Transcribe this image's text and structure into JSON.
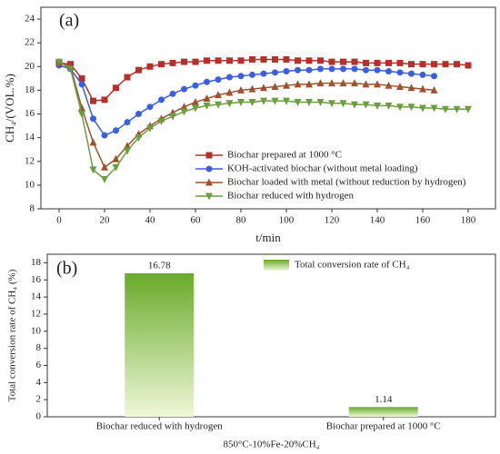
{
  "chart_data": [
    {
      "type": "line",
      "panel": "(a)",
      "xlabel": "t/min",
      "ylabel": "CH₄/(VOL.%)",
      "xlim": [
        -8,
        192
      ],
      "xticks": [
        0,
        20,
        40,
        60,
        80,
        100,
        120,
        140,
        160,
        180
      ],
      "ylim": [
        8,
        25
      ],
      "yticks": [
        8,
        10,
        12,
        14,
        16,
        18,
        20,
        22,
        24
      ],
      "series": [
        {
          "name": "Biochar prepared at 1000 °C",
          "color": "#b5302a",
          "marker": "square",
          "x": [
            0,
            5,
            10,
            15,
            20,
            25,
            30,
            35,
            40,
            45,
            50,
            55,
            60,
            65,
            70,
            75,
            80,
            85,
            90,
            95,
            100,
            105,
            110,
            115,
            120,
            125,
            130,
            135,
            140,
            145,
            150,
            155,
            160,
            165,
            170,
            175,
            180
          ],
          "values": [
            20.3,
            20.2,
            19.0,
            17.1,
            17.2,
            18.2,
            19.1,
            19.7,
            20.0,
            20.2,
            20.3,
            20.4,
            20.4,
            20.5,
            20.5,
            20.5,
            20.5,
            20.6,
            20.6,
            20.6,
            20.6,
            20.5,
            20.5,
            20.5,
            20.4,
            20.4,
            20.4,
            20.3,
            20.3,
            20.3,
            20.3,
            20.2,
            20.2,
            20.2,
            20.2,
            20.2,
            20.1
          ]
        },
        {
          "name": "KOH-activated biochar (without metal loading)",
          "color": "#3a5fe0",
          "marker": "circle",
          "x": [
            0,
            5,
            10,
            15,
            20,
            25,
            30,
            35,
            40,
            45,
            50,
            55,
            60,
            65,
            70,
            75,
            80,
            85,
            90,
            95,
            100,
            105,
            110,
            115,
            120,
            125,
            130,
            135,
            140,
            145,
            150,
            155,
            160,
            165
          ],
          "values": [
            20.1,
            19.8,
            18.5,
            15.6,
            14.2,
            14.6,
            15.3,
            16.0,
            16.6,
            17.2,
            17.7,
            18.1,
            18.4,
            18.7,
            18.9,
            19.1,
            19.2,
            19.3,
            19.4,
            19.5,
            19.6,
            19.7,
            19.7,
            19.8,
            19.8,
            19.8,
            19.8,
            19.7,
            19.7,
            19.6,
            19.5,
            19.4,
            19.3,
            19.2
          ]
        },
        {
          "name": "Biochar loaded with metal (without reduction by hydrogen)",
          "color": "#a0522d",
          "marker": "triangle",
          "x": [
            0,
            5,
            10,
            15,
            20,
            25,
            30,
            35,
            40,
            45,
            50,
            55,
            60,
            65,
            70,
            75,
            80,
            85,
            90,
            95,
            100,
            105,
            110,
            115,
            120,
            125,
            130,
            135,
            140,
            145,
            150,
            155,
            160,
            165
          ],
          "values": [
            20.3,
            20.0,
            16.5,
            13.6,
            11.5,
            12.2,
            13.3,
            14.3,
            15.0,
            15.6,
            16.1,
            16.6,
            17.0,
            17.3,
            17.6,
            17.8,
            18.0,
            18.1,
            18.2,
            18.3,
            18.4,
            18.5,
            18.5,
            18.6,
            18.6,
            18.6,
            18.6,
            18.5,
            18.5,
            18.4,
            18.3,
            18.2,
            18.1,
            18.0
          ]
        },
        {
          "name": "Biochar reduced with hydrogen",
          "color": "#6b9e3f",
          "marker": "triangle-down",
          "x": [
            0,
            5,
            10,
            15,
            20,
            25,
            30,
            35,
            40,
            45,
            50,
            55,
            60,
            65,
            70,
            75,
            80,
            85,
            90,
            95,
            100,
            105,
            110,
            115,
            120,
            125,
            130,
            135,
            140,
            145,
            150,
            155,
            160,
            165,
            170,
            175,
            180
          ],
          "values": [
            20.4,
            19.8,
            16.0,
            11.3,
            10.5,
            11.5,
            12.9,
            14.0,
            14.8,
            15.4,
            15.8,
            16.2,
            16.5,
            16.7,
            16.8,
            16.9,
            17.0,
            17.0,
            17.1,
            17.1,
            17.1,
            17.0,
            17.0,
            17.0,
            16.9,
            16.9,
            16.8,
            16.8,
            16.7,
            16.7,
            16.6,
            16.6,
            16.5,
            16.5,
            16.4,
            16.4,
            16.4
          ]
        }
      ]
    },
    {
      "type": "bar",
      "panel": "(b)",
      "xlabel": "850°C-10%Fe-20%CH₄",
      "ylabel": "Total conversion rate of CH₄ (%)",
      "legend": "Total conversion rate of CH₄",
      "color": "#6aaa2a",
      "categories": [
        "Biochar reduced with hydrogen",
        "Biochar prepared at 1000 °C"
      ],
      "values": [
        16.78,
        1.14
      ],
      "ylim": [
        0,
        19
      ],
      "yticks": [
        0,
        2,
        4,
        6,
        8,
        10,
        12,
        14,
        16,
        18
      ]
    }
  ]
}
